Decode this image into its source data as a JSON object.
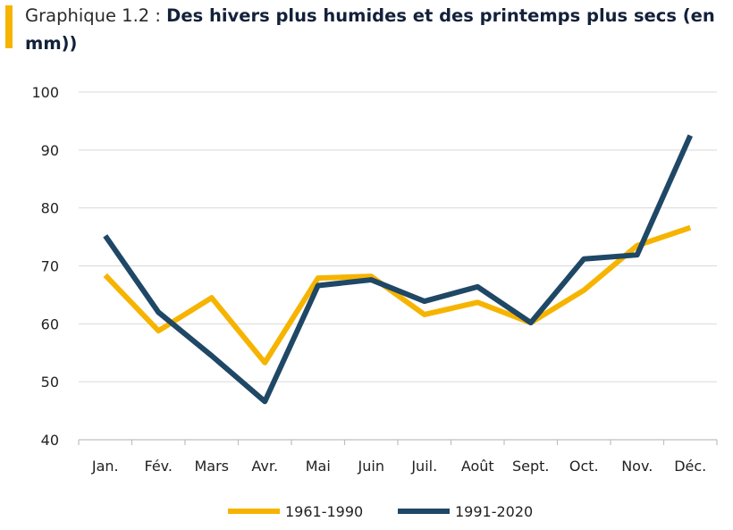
{
  "title": {
    "prefix": "Graphique 1.2 : ",
    "main": "Des hivers plus humides et des printemps plus secs (en mm))"
  },
  "colors": {
    "accent_bar": "#f6b400",
    "series_1961_1990": "#f6b400",
    "series_1991_2020": "#1f4766",
    "grid": "#d9d9d9"
  },
  "chart_data": {
    "type": "line",
    "categories": [
      "Jan.",
      "Fév.",
      "Mars",
      "Avr.",
      "Mai",
      "Juin",
      "Juil.",
      "Août",
      "Sept.",
      "Oct.",
      "Nov.",
      "Déc."
    ],
    "ylim": [
      40,
      100
    ],
    "yticks": [
      40,
      50,
      60,
      70,
      80,
      90,
      100
    ],
    "grid": true,
    "legend_placement": "bottom",
    "series": [
      {
        "name": "1961-1990",
        "color": "#f6b400",
        "values": [
          68.4,
          58.8,
          64.5,
          53.3,
          67.9,
          68.2,
          61.6,
          63.7,
          60.2,
          65.8,
          73.5,
          76.6
        ]
      },
      {
        "name": "1991-2020",
        "color": "#1f4766",
        "values": [
          75.2,
          62.0,
          54.5,
          46.6,
          66.6,
          67.6,
          63.9,
          66.4,
          60.2,
          71.2,
          71.9,
          92.5
        ]
      }
    ]
  }
}
